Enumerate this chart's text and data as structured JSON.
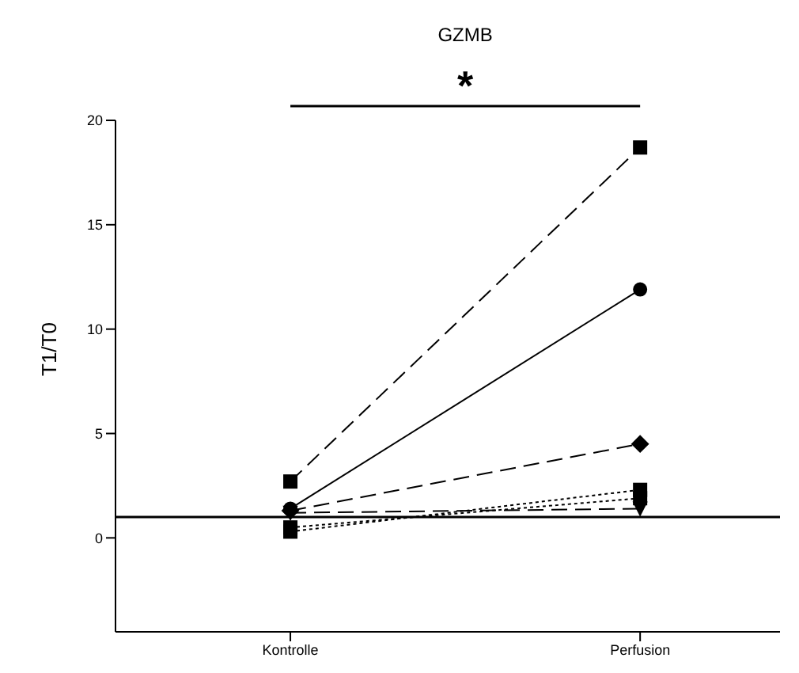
{
  "chart_data": {
    "type": "line",
    "title": "GZMB",
    "ylabel": "T1/T0",
    "categories": [
      "Kontrolle",
      "Perfusion"
    ],
    "series": [
      {
        "color": "#000000",
        "values": [
          2.7,
          18.7
        ],
        "marker": "square",
        "line_style": "dashed"
      },
      {
        "color": "#000000",
        "values": [
          1.4,
          11.9
        ],
        "marker": "circle",
        "line_style": "solid"
      },
      {
        "color": "#000000",
        "values": [
          1.3,
          4.5
        ],
        "marker": "diamond",
        "line_style": "dashed"
      },
      {
        "color": "#000000",
        "values": [
          0.3,
          2.3
        ],
        "marker": "square",
        "line_style": "dotted"
      },
      {
        "color": "#000000",
        "values": [
          0.5,
          1.9
        ],
        "marker": "square",
        "line_style": "dotted"
      },
      {
        "color": "#000000",
        "values": [
          1.2,
          1.4
        ],
        "marker": "triangle",
        "line_style": "dashed"
      }
    ],
    "ylim": [
      -4.5,
      20
    ],
    "yticks": [
      0,
      5,
      10,
      15,
      20
    ],
    "grid": false,
    "legend": false,
    "ref_lines": [
      {
        "axis": "y",
        "value": 1,
        "color": "#000000"
      }
    ],
    "annotations": [
      "*"
    ]
  }
}
